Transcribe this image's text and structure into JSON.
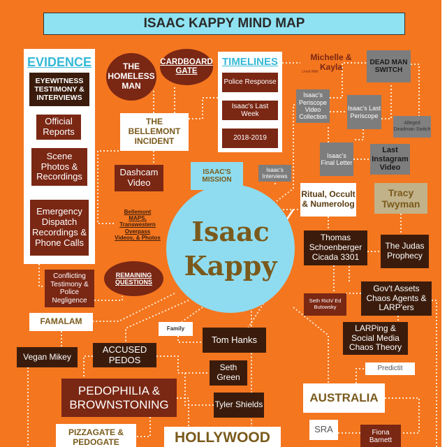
{
  "title": "ISAAC KAPPY MIND MAP",
  "center": {
    "line1": "Isaac",
    "line2": "Kappy"
  },
  "colors": {
    "background": "#f4761f",
    "dark_box": "#3b1c0c",
    "red_box": "#7a2714",
    "grey_box": "#7d7d7d",
    "light_blue": "#8fdcf0",
    "title_bar": "#8fe2f2"
  },
  "evidence": {
    "heading": "EVIDENCE",
    "items": [
      "EYEWITNESS TESTIMONY & INTERVIEWS",
      "Official Reports",
      "Scene Photos & Recordings",
      "Emergency Dispatch Recordings & Phone Calls"
    ]
  },
  "timelines": {
    "heading": "TIMELINES",
    "items": [
      "Police Response",
      "Isaac's Last Week",
      "2018-2019"
    ]
  },
  "nodes": {
    "homeless_man": "THE HOMELESS MAN",
    "cardboard_gate": "CARDBOARD GATE",
    "michelle_kayla": "Michelle & Kayla",
    "lived_with": "Lived With",
    "dead_man_switch": "DEAD MAN SWITCH",
    "periscope_collection": "Isaac's Periscope Video Collection",
    "last_periscope": "Isaac's Last Periscope",
    "alleged_deadman": "Alleged Deadman Switch",
    "final_letter": "Isaac's Final Letter",
    "last_instagram": "Last Instagram Video",
    "bellemont_incident": "THE BELLEMONT INCIDENT",
    "dashcam": "Dashcam Video",
    "bellemont_maps": "Bellemont MAPS, Transwestern Overpass Videos, & Photos",
    "mission": "ISAAC'S MISSION",
    "interviews": "Isaac's Interviews",
    "ritual": "Ritual, Occult & Numerolog",
    "tracy": "Tracy Twyman",
    "thomas": "Thomas Schoenberger Cicada 3301",
    "judas": "The Judas Prophecy",
    "conflicting": "Conflicting Testimony & Police Negligence",
    "remaining": "REMAINING QUESTIONS",
    "seth_rich": "Seth Rich/ Ed Butowsky",
    "govt_assets": "Gov't Assets Chaos Agents & LARP'ers",
    "famalam": "FAMALAM",
    "family": "Family",
    "tom_hanks": "Tom Hanks",
    "vegan_mikey": "Vegan Mikey",
    "accused_pedos": "ACCUSED PEDOS",
    "larping": "LARPing & Social Media Chaos Theory",
    "predictit": "Predictit",
    "seth_green": "Seth Green",
    "pedophilia": "PEDOPHILIA & BROWNSTONING",
    "australia": "AUSTRALIA",
    "tyler_shields": "Tyler Shields",
    "sra": "SRA",
    "fiona": "Fiona Barnett",
    "pizzagate": "PIZZAGATE & PEDOGATE",
    "hollywood": "HOLLYWOOD"
  }
}
